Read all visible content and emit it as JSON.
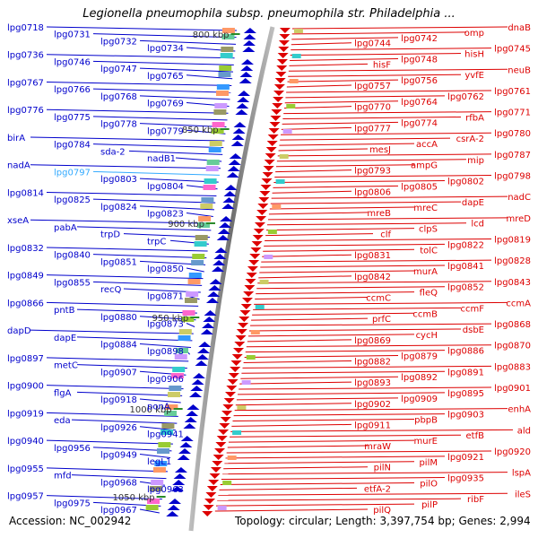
{
  "title": "Legionella pneumophila subsp. pneumophila str. Philadelphia ...",
  "footer": {
    "accession": "Accession: NC_002942",
    "summary": "Topology: circular; Length: 3,397,754 bp; Genes: 2,994"
  },
  "colors": {
    "forward_strand": "#0000cc",
    "reverse_strand": "#dd0000",
    "highlight_gene": "#33aaff",
    "backbone": "#777777",
    "tick_marker": "#2a8a2a"
  },
  "scale_marks": [
    {
      "label": "800 kbp"
    },
    {
      "label": "850 kbp"
    },
    {
      "label": "900 kbp"
    },
    {
      "label": "950 kbp"
    },
    {
      "label": "1000 kbp"
    },
    {
      "label": "1050 kbp"
    }
  ],
  "left_genes": [
    {
      "label": "lpg0718"
    },
    {
      "label": "lpg0731"
    },
    {
      "label": "lpg0732"
    },
    {
      "label": "lpg0734"
    },
    {
      "label": "lpg0736"
    },
    {
      "label": "lpg0746"
    },
    {
      "label": "lpg0747"
    },
    {
      "label": "lpg0765"
    },
    {
      "label": "lpg0767"
    },
    {
      "label": "lpg0766"
    },
    {
      "label": "lpg0768"
    },
    {
      "label": "lpg0769"
    },
    {
      "label": "lpg0776"
    },
    {
      "label": "lpg0775"
    },
    {
      "label": "lpg0778"
    },
    {
      "label": "lpg0779"
    },
    {
      "label": "birA"
    },
    {
      "label": "lpg0784"
    },
    {
      "label": "sda-2"
    },
    {
      "label": "nadB1"
    },
    {
      "label": "nadA"
    },
    {
      "label": "lpg0797",
      "highlight": true
    },
    {
      "label": "lpg0803"
    },
    {
      "label": "lpg0804"
    },
    {
      "label": "lpg0814"
    },
    {
      "label": "lpg0825"
    },
    {
      "label": "lpg0824"
    },
    {
      "label": "lpg0823"
    },
    {
      "label": "xseA"
    },
    {
      "label": "pabA"
    },
    {
      "label": "trpD"
    },
    {
      "label": "trpC"
    },
    {
      "label": "lpg0832"
    },
    {
      "label": "lpg0840"
    },
    {
      "label": "lpg0851"
    },
    {
      "label": "lpg0850"
    },
    {
      "label": "lpg0849"
    },
    {
      "label": "lpg0855"
    },
    {
      "label": "recQ"
    },
    {
      "label": "lpg0871"
    },
    {
      "label": "lpg0866"
    },
    {
      "label": "pntB"
    },
    {
      "label": "lpg0880"
    },
    {
      "label": "lpg0873"
    },
    {
      "label": "dapD"
    },
    {
      "label": "dapE"
    },
    {
      "label": "lpg0884"
    },
    {
      "label": "lpg0898"
    },
    {
      "label": "lpg0897"
    },
    {
      "label": "metC"
    },
    {
      "label": "lpg0907"
    },
    {
      "label": "lpg0906"
    },
    {
      "label": "lpg0900"
    },
    {
      "label": "flgA"
    },
    {
      "label": "lpg0918"
    },
    {
      "label": "ponA"
    },
    {
      "label": "lpg0919"
    },
    {
      "label": "eda"
    },
    {
      "label": "lpg0926"
    },
    {
      "label": "lpg0941"
    },
    {
      "label": "lpg0940"
    },
    {
      "label": "lpg0956"
    },
    {
      "label": "lpg0949"
    },
    {
      "label": "legL1"
    },
    {
      "label": "lpg0955"
    },
    {
      "label": "mfd"
    },
    {
      "label": "lpg0968"
    },
    {
      "label": "lpg0963"
    },
    {
      "label": "lpg0957"
    },
    {
      "label": "lpg0975"
    },
    {
      "label": "lpg0967"
    }
  ],
  "right_genes": [
    {
      "label": "dnaB"
    },
    {
      "label": "omp"
    },
    {
      "label": "lpg0742"
    },
    {
      "label": "lpg0744"
    },
    {
      "label": "lpg0745"
    },
    {
      "label": "hisH"
    },
    {
      "label": "lpg0748"
    },
    {
      "label": "hisF"
    },
    {
      "label": "neuB"
    },
    {
      "label": "yvfE"
    },
    {
      "label": "lpg0756"
    },
    {
      "label": "lpg0757"
    },
    {
      "label": "lpg0761"
    },
    {
      "label": "lpg0762"
    },
    {
      "label": "lpg0764"
    },
    {
      "label": "lpg0770"
    },
    {
      "label": "lpg0771"
    },
    {
      "label": "rfbA"
    },
    {
      "label": "lpg0774"
    },
    {
      "label": "lpg0777"
    },
    {
      "label": "lpg0780"
    },
    {
      "label": "csrA-2"
    },
    {
      "label": "accA"
    },
    {
      "label": "mesJ"
    },
    {
      "label": "lpg0787"
    },
    {
      "label": "mip"
    },
    {
      "label": "ampG"
    },
    {
      "label": "lpg0793"
    },
    {
      "label": "lpg0798"
    },
    {
      "label": "lpg0802"
    },
    {
      "label": "lpg0805"
    },
    {
      "label": "lpg0806"
    },
    {
      "label": "nadC"
    },
    {
      "label": "dapE"
    },
    {
      "label": "mreC"
    },
    {
      "label": "mreB"
    },
    {
      "label": "mreD"
    },
    {
      "label": "lcd"
    },
    {
      "label": "clpS"
    },
    {
      "label": "clf"
    },
    {
      "label": "lpg0819"
    },
    {
      "label": "lpg0822"
    },
    {
      "label": "tolC"
    },
    {
      "label": "lpg0831"
    },
    {
      "label": "lpg0828"
    },
    {
      "label": "lpg0841"
    },
    {
      "label": "murA"
    },
    {
      "label": "lpg0842"
    },
    {
      "label": "lpg0843"
    },
    {
      "label": "lpg0852"
    },
    {
      "label": "fleQ"
    },
    {
      "label": "ccmC"
    },
    {
      "label": "ccmA"
    },
    {
      "label": "ccmF"
    },
    {
      "label": "ccmB"
    },
    {
      "label": "prfC"
    },
    {
      "label": "lpg0868"
    },
    {
      "label": "dsbE"
    },
    {
      "label": "cycH"
    },
    {
      "label": "lpg0869"
    },
    {
      "label": "lpg0870"
    },
    {
      "label": "lpg0886"
    },
    {
      "label": "lpg0879"
    },
    {
      "label": "lpg0882"
    },
    {
      "label": "lpg0883"
    },
    {
      "label": "lpg0891"
    },
    {
      "label": "lpg0892"
    },
    {
      "label": "lpg0893"
    },
    {
      "label": "lpg0901"
    },
    {
      "label": "lpg0895"
    },
    {
      "label": "lpg0909"
    },
    {
      "label": "lpg0902"
    },
    {
      "label": "enhA"
    },
    {
      "label": "lpg0903"
    },
    {
      "label": "pbpB"
    },
    {
      "label": "lpg0911"
    },
    {
      "label": "ald"
    },
    {
      "label": "etfB"
    },
    {
      "label": "murE"
    },
    {
      "label": "mraW"
    },
    {
      "label": "lpg0920"
    },
    {
      "label": "lpg0921"
    },
    {
      "label": "pilM"
    },
    {
      "label": "pilN"
    },
    {
      "label": "lspA"
    },
    {
      "label": "lpg0935"
    },
    {
      "label": "pilO"
    },
    {
      "label": "etfA-2"
    },
    {
      "label": "ileS"
    },
    {
      "label": "ribF"
    },
    {
      "label": "pilP"
    },
    {
      "label": "pilQ"
    }
  ]
}
